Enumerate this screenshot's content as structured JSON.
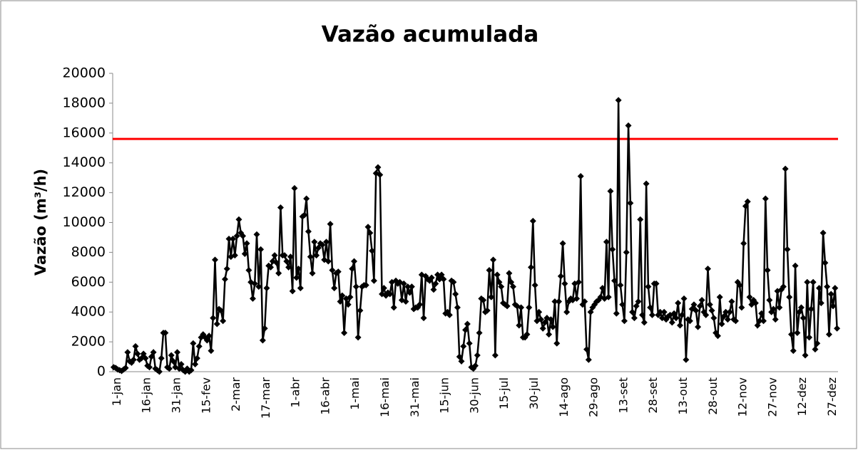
{
  "chart_data": {
    "type": "line",
    "title": "Vazão acumulada",
    "y_label": "Vazão (m³/h)",
    "categories": [
      "1-jan",
      null,
      null,
      null,
      null,
      null,
      null,
      null,
      null,
      null,
      null,
      null,
      null,
      null,
      null,
      "16-jan",
      null,
      null,
      null,
      null,
      null,
      null,
      null,
      null,
      null,
      null,
      null,
      null,
      null,
      null,
      "31-jan",
      null,
      null,
      null,
      null,
      null,
      null,
      null,
      null,
      null,
      null,
      null,
      null,
      null,
      null,
      "15-fev",
      null,
      null,
      null,
      null,
      null,
      null,
      null,
      null,
      null,
      null,
      null,
      null,
      null,
      null,
      "2-mar",
      null,
      null,
      null,
      null,
      null,
      null,
      null,
      null,
      null,
      null,
      null,
      null,
      null,
      null,
      "17-mar",
      null,
      null,
      null,
      null,
      null,
      null,
      null,
      null,
      null,
      null,
      null,
      null,
      null,
      null,
      "1-abr",
      null,
      null,
      null,
      null,
      null,
      null,
      null,
      null,
      null,
      null,
      null,
      null,
      null,
      null,
      "16-abr",
      null,
      null,
      null,
      null,
      null,
      null,
      null,
      null,
      null,
      null,
      null,
      null,
      null,
      null,
      "1-mai",
      null,
      null,
      null,
      null,
      null,
      null,
      null,
      null,
      null,
      null,
      null,
      null,
      null,
      null,
      "16-mai",
      null,
      null,
      null,
      null,
      null,
      null,
      null,
      null,
      null,
      null,
      null,
      null,
      null,
      null,
      "31-mai",
      null,
      null,
      null,
      null,
      null,
      null,
      null,
      null,
      null,
      null,
      null,
      null,
      null,
      null,
      "15-jun",
      null,
      null,
      null,
      null,
      null,
      null,
      null,
      null,
      null,
      null,
      null,
      null,
      null,
      null,
      "30-jun",
      null,
      null,
      null,
      null,
      null,
      null,
      null,
      null,
      null,
      null,
      null,
      null,
      null,
      null,
      "15-jul",
      null,
      null,
      null,
      null,
      null,
      null,
      null,
      null,
      null,
      null,
      null,
      null,
      null,
      null,
      "30-jul",
      null,
      null,
      null,
      null,
      null,
      null,
      null,
      null,
      null,
      null,
      null,
      null,
      null,
      null,
      "14-ago",
      null,
      null,
      null,
      null,
      null,
      null,
      null,
      null,
      null,
      null,
      null,
      null,
      null,
      null,
      "29-ago",
      null,
      null,
      null,
      null,
      null,
      null,
      null,
      null,
      null,
      null,
      null,
      null,
      null,
      null,
      "13-set",
      null,
      null,
      null,
      null,
      null,
      null,
      null,
      null,
      null,
      null,
      null,
      null,
      null,
      null,
      "28-set",
      null,
      null,
      null,
      null,
      null,
      null,
      null,
      null,
      null,
      null,
      null,
      null,
      null,
      null,
      "13-out",
      null,
      null,
      null,
      null,
      null,
      null,
      null,
      null,
      null,
      null,
      null,
      null,
      null,
      null,
      "28-out",
      null,
      null,
      null,
      null,
      null,
      null,
      null,
      null,
      null,
      null,
      null,
      null,
      null,
      null,
      "12-nov",
      null,
      null,
      null,
      null,
      null,
      null,
      null,
      null,
      null,
      null,
      null,
      null,
      null,
      null,
      "27-nov",
      null,
      null,
      null,
      null,
      null,
      null,
      null,
      null,
      null,
      null,
      null,
      null,
      null,
      null,
      "12-dez",
      null,
      null,
      null,
      null,
      null,
      null,
      null,
      null,
      null,
      null,
      null,
      null,
      null,
      null,
      "27-dez",
      null,
      null,
      null,
      null
    ],
    "values": [
      300,
      250,
      150,
      100,
      50,
      150,
      250,
      1300,
      700,
      600,
      800,
      1700,
      1200,
      800,
      900,
      1200,
      900,
      400,
      300,
      1000,
      1300,
      200,
      100,
      0,
      900,
      2600,
      2600,
      300,
      200,
      1100,
      700,
      300,
      1300,
      200,
      500,
      100,
      0,
      200,
      0,
      100,
      1900,
      500,
      900,
      1700,
      2300,
      2500,
      2300,
      2100,
      2400,
      1400,
      3600,
      7500,
      3200,
      4200,
      4100,
      3400,
      6200,
      6900,
      8900,
      7700,
      8900,
      7800,
      9100,
      10200,
      9300,
      9100,
      7900,
      8600,
      6800,
      6000,
      4900,
      5900,
      9200,
      5700,
      8200,
      2100,
      2900,
      5600,
      7100,
      7000,
      7400,
      7800,
      7300,
      6600,
      11000,
      7800,
      7800,
      7400,
      7000,
      7700,
      5400,
      12300,
      6300,
      6900,
      5600,
      10400,
      10500,
      11600,
      9400,
      7700,
      6600,
      8700,
      7800,
      8300,
      8600,
      8500,
      7500,
      8700,
      7400,
      9900,
      6800,
      5600,
      6600,
      6700,
      4700,
      5100,
      2600,
      4900,
      4500,
      5000,
      6900,
      7400,
      5700,
      2300,
      4100,
      5700,
      5800,
      5800,
      9700,
      9300,
      8100,
      6100,
      13300,
      13700,
      13200,
      5200,
      5600,
      5100,
      5300,
      5200,
      6000,
      4300,
      6100,
      5900,
      6000,
      4800,
      5900,
      4700,
      5700,
      5300,
      5700,
      4200,
      4300,
      4300,
      4500,
      6500,
      3600,
      6400,
      6200,
      6100,
      6300,
      5500,
      5900,
      6500,
      6200,
      6500,
      6200,
      3900,
      4000,
      3800,
      6100,
      6000,
      5200,
      4300,
      1000,
      700,
      1700,
      2800,
      3200,
      1900,
      300,
      200,
      400,
      1100,
      2600,
      4900,
      4800,
      4000,
      4100,
      6800,
      5000,
      7500,
      1100,
      6500,
      6000,
      5700,
      4600,
      4500,
      4400,
      6600,
      6000,
      5700,
      4500,
      4400,
      3100,
      4300,
      2300,
      2300,
      2500,
      4300,
      7000,
      10100,
      5800,
      3400,
      4000,
      3500,
      2900,
      3300,
      3600,
      2500,
      3500,
      3000,
      4700,
      1900,
      4700,
      6400,
      8600,
      5900,
      4000,
      4700,
      4900,
      4800,
      5900,
      4900,
      6000,
      13100,
      4500,
      4700,
      1500,
      800,
      4000,
      4300,
      4500,
      4700,
      4800,
      5000,
      5600,
      4900,
      8700,
      5000,
      12100,
      8200,
      6100,
      3900,
      18200,
      5800,
      4500,
      3400,
      8000,
      16500,
      11300,
      4000,
      3600,
      4400,
      4700,
      10200,
      3800,
      3300,
      12600,
      5700,
      4300,
      3800,
      5900,
      5900,
      3800,
      4000,
      3600,
      4000,
      3500,
      3700,
      3800,
      3300,
      3900,
      3600,
      4600,
      3100,
      3800,
      4900,
      800,
      3500,
      3400,
      4200,
      4500,
      4100,
      3000,
      4400,
      4800,
      4000,
      3800,
      6900,
      4500,
      4100,
      3600,
      2600,
      2400,
      5000,
      3200,
      3700,
      4000,
      3500,
      4000,
      4700,
      3500,
      3400,
      6000,
      5800,
      4300,
      8600,
      11100,
      11400,
      5000,
      4500,
      4800,
      4600,
      3100,
      3400,
      3900,
      3400,
      11600,
      6800,
      4800,
      4000,
      4200,
      3500,
      5400,
      4300,
      5500,
      5700,
      13600,
      8200,
      5000,
      2500,
      1400,
      7100,
      2600,
      4000,
      4300,
      3600,
      1100,
      6000,
      2300,
      4200,
      6000,
      1500,
      1900,
      5600,
      4600,
      9300,
      7300,
      5700,
      2500,
      5200,
      4400,
      5600,
      2900
    ],
    "color": "#000000",
    "threshold": {
      "value": 15600,
      "color": "#ff0000"
    },
    "ylim": [
      0,
      20000
    ],
    "yticks": [
      0,
      2000,
      4000,
      6000,
      8000,
      10000,
      12000,
      14000,
      16000,
      18000,
      20000
    ]
  }
}
